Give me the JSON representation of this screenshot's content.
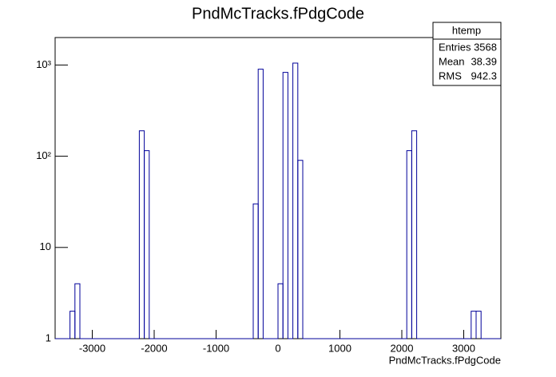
{
  "chart_data": {
    "type": "histogram",
    "title": "PndMcTracks.fPdgCode",
    "x_label": "PndMcTracks.fPdgCode",
    "bins": [
      -3600,
      -3360,
      -3280,
      -3200,
      -2240,
      -2160,
      -2080,
      -400,
      -320,
      -240,
      0,
      80,
      160,
      240,
      320,
      400,
      2080,
      2160,
      2240,
      3120,
      3200,
      3280,
      3600
    ],
    "counts": [
      0,
      2,
      4,
      0,
      190,
      115,
      0,
      30,
      900,
      0,
      4,
      830,
      0,
      1050,
      90,
      0,
      115,
      190,
      0,
      2,
      2,
      0
    ],
    "color": "#000099",
    "xlim": [
      -3600,
      3600
    ],
    "xticks": [
      -3000,
      -2000,
      -1000,
      0,
      1000,
      2000,
      3000
    ],
    "ylim": [
      1,
      2000
    ],
    "log_y": true,
    "yticks": [
      1,
      10,
      {
        "value": 100,
        "label": "10²"
      },
      {
        "value": 1000,
        "label": "10³"
      }
    ],
    "stats": {
      "title": "htemp",
      "rows": [
        [
          "Entries",
          "3568"
        ],
        [
          "Mean",
          "38.39"
        ],
        [
          "RMS",
          "942.3"
        ]
      ]
    }
  }
}
